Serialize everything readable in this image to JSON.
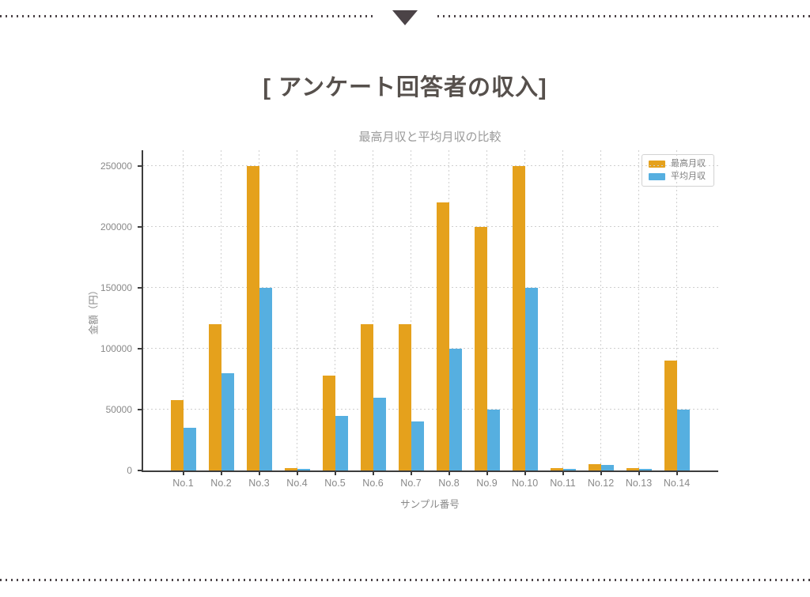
{
  "page": {
    "title": "[ アンケート回答者の収入]"
  },
  "icons": {
    "top_marker": "triangle-down"
  },
  "chart_data": {
    "type": "bar",
    "title": "最高月収と平均月収の比較",
    "xlabel": "サンプル番号",
    "ylabel": "金額（円）",
    "categories": [
      "No.1",
      "No.2",
      "No.3",
      "No.4",
      "No.5",
      "No.6",
      "No.7",
      "No.8",
      "No.9",
      "No.10",
      "No.11",
      "No.12",
      "No.13",
      "No.14"
    ],
    "series": [
      {
        "name": "最高月収",
        "color": "#E5A11C",
        "values": [
          57500,
          120000,
          250000,
          2000,
          78000,
          120000,
          120000,
          220000,
          200000,
          250000,
          2000,
          5000,
          2000,
          90000
        ]
      },
      {
        "name": "平均月収",
        "color": "#56AFE0",
        "values": [
          35000,
          80000,
          150000,
          1500,
          45000,
          60000,
          40000,
          100000,
          50000,
          150000,
          1500,
          4500,
          1500,
          50000
        ]
      }
    ],
    "ylim": [
      0,
      263000
    ],
    "yticks": [
      0,
      50000,
      100000,
      150000,
      200000,
      250000
    ],
    "grid": true,
    "legend_position": "upper right",
    "spine_color": "#3d3d3d",
    "grid_color": "#cfcfcf"
  }
}
